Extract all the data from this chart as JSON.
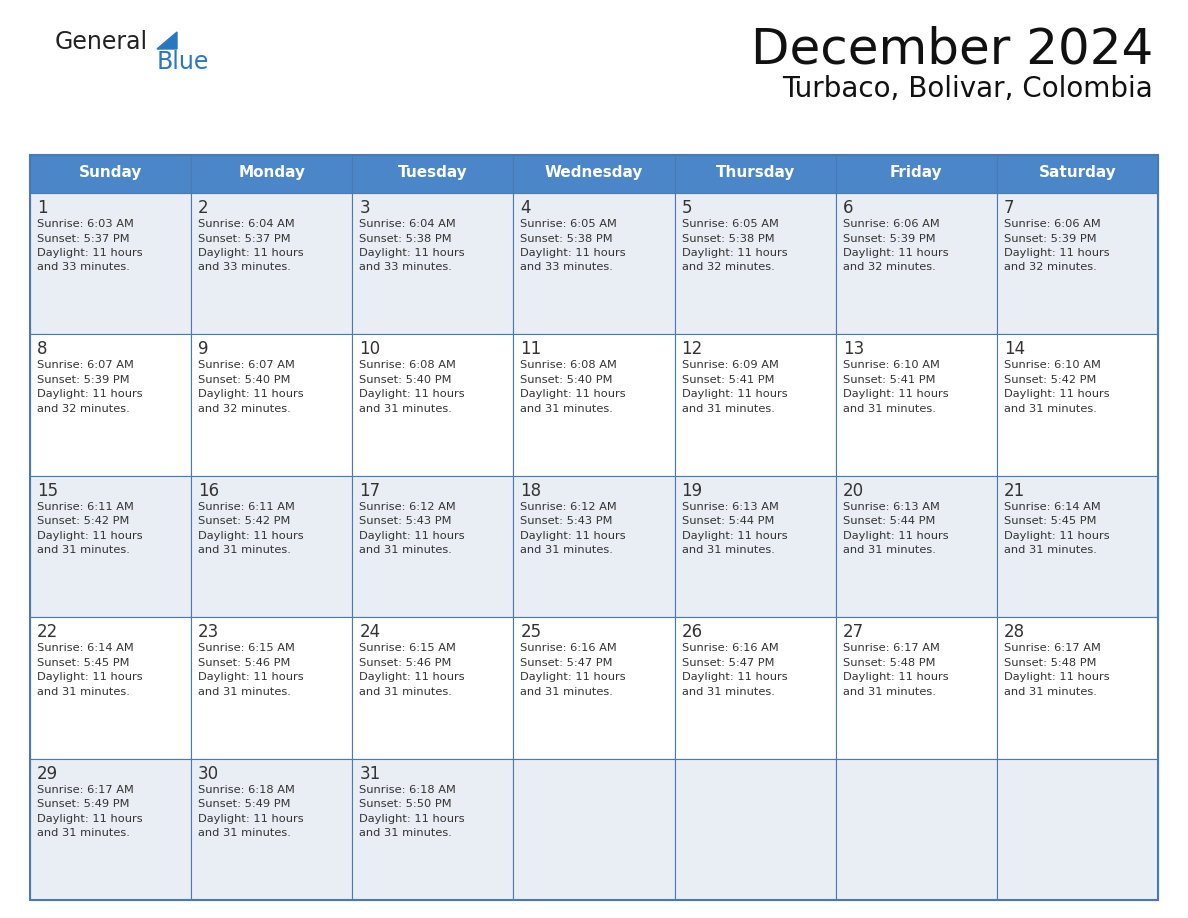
{
  "title": "December 2024",
  "subtitle": "Turbaco, Bolivar, Colombia",
  "header_color": "#4a86c8",
  "header_text_color": "#ffffff",
  "cell_bg_even": "#e8eef4",
  "cell_bg_odd": "#ffffff",
  "border_color": "#4a7ab5",
  "text_color": "#333333",
  "logo_general_color": "#222222",
  "logo_blue_color": "#2878c0",
  "logo_triangle_color": "#2878c0",
  "days_of_week": [
    "Sunday",
    "Monday",
    "Tuesday",
    "Wednesday",
    "Thursday",
    "Friday",
    "Saturday"
  ],
  "weeks": [
    [
      {
        "day": "1",
        "sunrise": "6:03 AM",
        "sunset": "5:37 PM",
        "daylight_h": "11 hours",
        "daylight_m": "and 33 minutes."
      },
      {
        "day": "2",
        "sunrise": "6:04 AM",
        "sunset": "5:37 PM",
        "daylight_h": "11 hours",
        "daylight_m": "and 33 minutes."
      },
      {
        "day": "3",
        "sunrise": "6:04 AM",
        "sunset": "5:38 PM",
        "daylight_h": "11 hours",
        "daylight_m": "and 33 minutes."
      },
      {
        "day": "4",
        "sunrise": "6:05 AM",
        "sunset": "5:38 PM",
        "daylight_h": "11 hours",
        "daylight_m": "and 33 minutes."
      },
      {
        "day": "5",
        "sunrise": "6:05 AM",
        "sunset": "5:38 PM",
        "daylight_h": "11 hours",
        "daylight_m": "and 32 minutes."
      },
      {
        "day": "6",
        "sunrise": "6:06 AM",
        "sunset": "5:39 PM",
        "daylight_h": "11 hours",
        "daylight_m": "and 32 minutes."
      },
      {
        "day": "7",
        "sunrise": "6:06 AM",
        "sunset": "5:39 PM",
        "daylight_h": "11 hours",
        "daylight_m": "and 32 minutes."
      }
    ],
    [
      {
        "day": "8",
        "sunrise": "6:07 AM",
        "sunset": "5:39 PM",
        "daylight_h": "11 hours",
        "daylight_m": "and 32 minutes."
      },
      {
        "day": "9",
        "sunrise": "6:07 AM",
        "sunset": "5:40 PM",
        "daylight_h": "11 hours",
        "daylight_m": "and 32 minutes."
      },
      {
        "day": "10",
        "sunrise": "6:08 AM",
        "sunset": "5:40 PM",
        "daylight_h": "11 hours",
        "daylight_m": "and 31 minutes."
      },
      {
        "day": "11",
        "sunrise": "6:08 AM",
        "sunset": "5:40 PM",
        "daylight_h": "11 hours",
        "daylight_m": "and 31 minutes."
      },
      {
        "day": "12",
        "sunrise": "6:09 AM",
        "sunset": "5:41 PM",
        "daylight_h": "11 hours",
        "daylight_m": "and 31 minutes."
      },
      {
        "day": "13",
        "sunrise": "6:10 AM",
        "sunset": "5:41 PM",
        "daylight_h": "11 hours",
        "daylight_m": "and 31 minutes."
      },
      {
        "day": "14",
        "sunrise": "6:10 AM",
        "sunset": "5:42 PM",
        "daylight_h": "11 hours",
        "daylight_m": "and 31 minutes."
      }
    ],
    [
      {
        "day": "15",
        "sunrise": "6:11 AM",
        "sunset": "5:42 PM",
        "daylight_h": "11 hours",
        "daylight_m": "and 31 minutes."
      },
      {
        "day": "16",
        "sunrise": "6:11 AM",
        "sunset": "5:42 PM",
        "daylight_h": "11 hours",
        "daylight_m": "and 31 minutes."
      },
      {
        "day": "17",
        "sunrise": "6:12 AM",
        "sunset": "5:43 PM",
        "daylight_h": "11 hours",
        "daylight_m": "and 31 minutes."
      },
      {
        "day": "18",
        "sunrise": "6:12 AM",
        "sunset": "5:43 PM",
        "daylight_h": "11 hours",
        "daylight_m": "and 31 minutes."
      },
      {
        "day": "19",
        "sunrise": "6:13 AM",
        "sunset": "5:44 PM",
        "daylight_h": "11 hours",
        "daylight_m": "and 31 minutes."
      },
      {
        "day": "20",
        "sunrise": "6:13 AM",
        "sunset": "5:44 PM",
        "daylight_h": "11 hours",
        "daylight_m": "and 31 minutes."
      },
      {
        "day": "21",
        "sunrise": "6:14 AM",
        "sunset": "5:45 PM",
        "daylight_h": "11 hours",
        "daylight_m": "and 31 minutes."
      }
    ],
    [
      {
        "day": "22",
        "sunrise": "6:14 AM",
        "sunset": "5:45 PM",
        "daylight_h": "11 hours",
        "daylight_m": "and 31 minutes."
      },
      {
        "day": "23",
        "sunrise": "6:15 AM",
        "sunset": "5:46 PM",
        "daylight_h": "11 hours",
        "daylight_m": "and 31 minutes."
      },
      {
        "day": "24",
        "sunrise": "6:15 AM",
        "sunset": "5:46 PM",
        "daylight_h": "11 hours",
        "daylight_m": "and 31 minutes."
      },
      {
        "day": "25",
        "sunrise": "6:16 AM",
        "sunset": "5:47 PM",
        "daylight_h": "11 hours",
        "daylight_m": "and 31 minutes."
      },
      {
        "day": "26",
        "sunrise": "6:16 AM",
        "sunset": "5:47 PM",
        "daylight_h": "11 hours",
        "daylight_m": "and 31 minutes."
      },
      {
        "day": "27",
        "sunrise": "6:17 AM",
        "sunset": "5:48 PM",
        "daylight_h": "11 hours",
        "daylight_m": "and 31 minutes."
      },
      {
        "day": "28",
        "sunrise": "6:17 AM",
        "sunset": "5:48 PM",
        "daylight_h": "11 hours",
        "daylight_m": "and 31 minutes."
      }
    ],
    [
      {
        "day": "29",
        "sunrise": "6:17 AM",
        "sunset": "5:49 PM",
        "daylight_h": "11 hours",
        "daylight_m": "and 31 minutes."
      },
      {
        "day": "30",
        "sunrise": "6:18 AM",
        "sunset": "5:49 PM",
        "daylight_h": "11 hours",
        "daylight_m": "and 31 minutes."
      },
      {
        "day": "31",
        "sunrise": "6:18 AM",
        "sunset": "5:50 PM",
        "daylight_h": "11 hours",
        "daylight_m": "and 31 minutes."
      },
      null,
      null,
      null,
      null
    ]
  ]
}
